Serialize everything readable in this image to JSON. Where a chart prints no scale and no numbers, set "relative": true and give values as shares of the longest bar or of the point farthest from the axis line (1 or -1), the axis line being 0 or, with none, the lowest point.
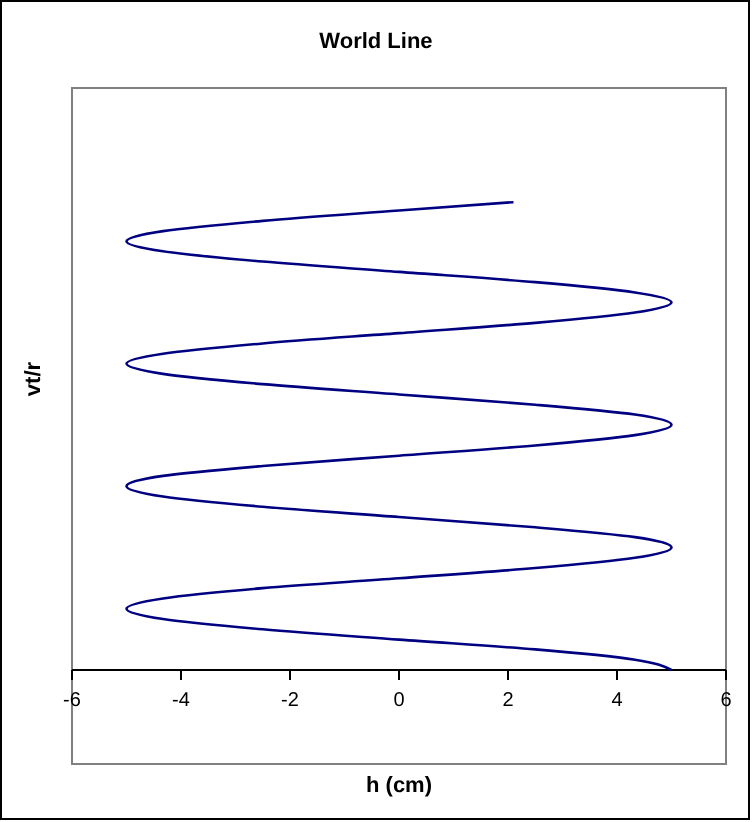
{
  "chart_data": {
    "type": "line",
    "title": "World Line",
    "xlabel": "h (cm)",
    "ylabel": "vt/r",
    "relative": true,
    "xlim": [
      -6,
      6
    ],
    "xticks": [
      -6,
      -4,
      -2,
      0,
      2,
      4,
      6
    ],
    "series": [
      {
        "color": "#000080",
        "x": [
          5,
          4.33,
          2.5,
          0,
          -2.5,
          -4.33,
          -5,
          -4.33,
          -2.5,
          0,
          2.5,
          4.33,
          5,
          4.33,
          2.5,
          0,
          -2.5,
          -4.33,
          -5,
          -4.33,
          -2.5,
          0,
          2.5,
          4.33,
          5,
          4.33,
          2.5,
          0,
          -2.5,
          -4.33,
          -5,
          -4.33,
          -2.5,
          0,
          2.5,
          4.33,
          5,
          4.33,
          2.5,
          0,
          -2.5,
          -4.33,
          -5,
          -4.33,
          -2.5,
          0,
          2.1
        ],
        "values": [
          0,
          0.022,
          0.044,
          0.065,
          0.087,
          0.109,
          0.131,
          0.153,
          0.175,
          0.196,
          0.218,
          0.24,
          0.262,
          0.284,
          0.305,
          0.327,
          0.349,
          0.371,
          0.393,
          0.415,
          0.436,
          0.458,
          0.48,
          0.502,
          0.524,
          0.546,
          0.567,
          0.589,
          0.611,
          0.633,
          0.655,
          0.676,
          0.698,
          0.72,
          0.742,
          0.764,
          0.786,
          0.807,
          0.829,
          0.851,
          0.873,
          0.895,
          0.916,
          0.938,
          0.96,
          0.982,
          1
        ]
      }
    ]
  }
}
